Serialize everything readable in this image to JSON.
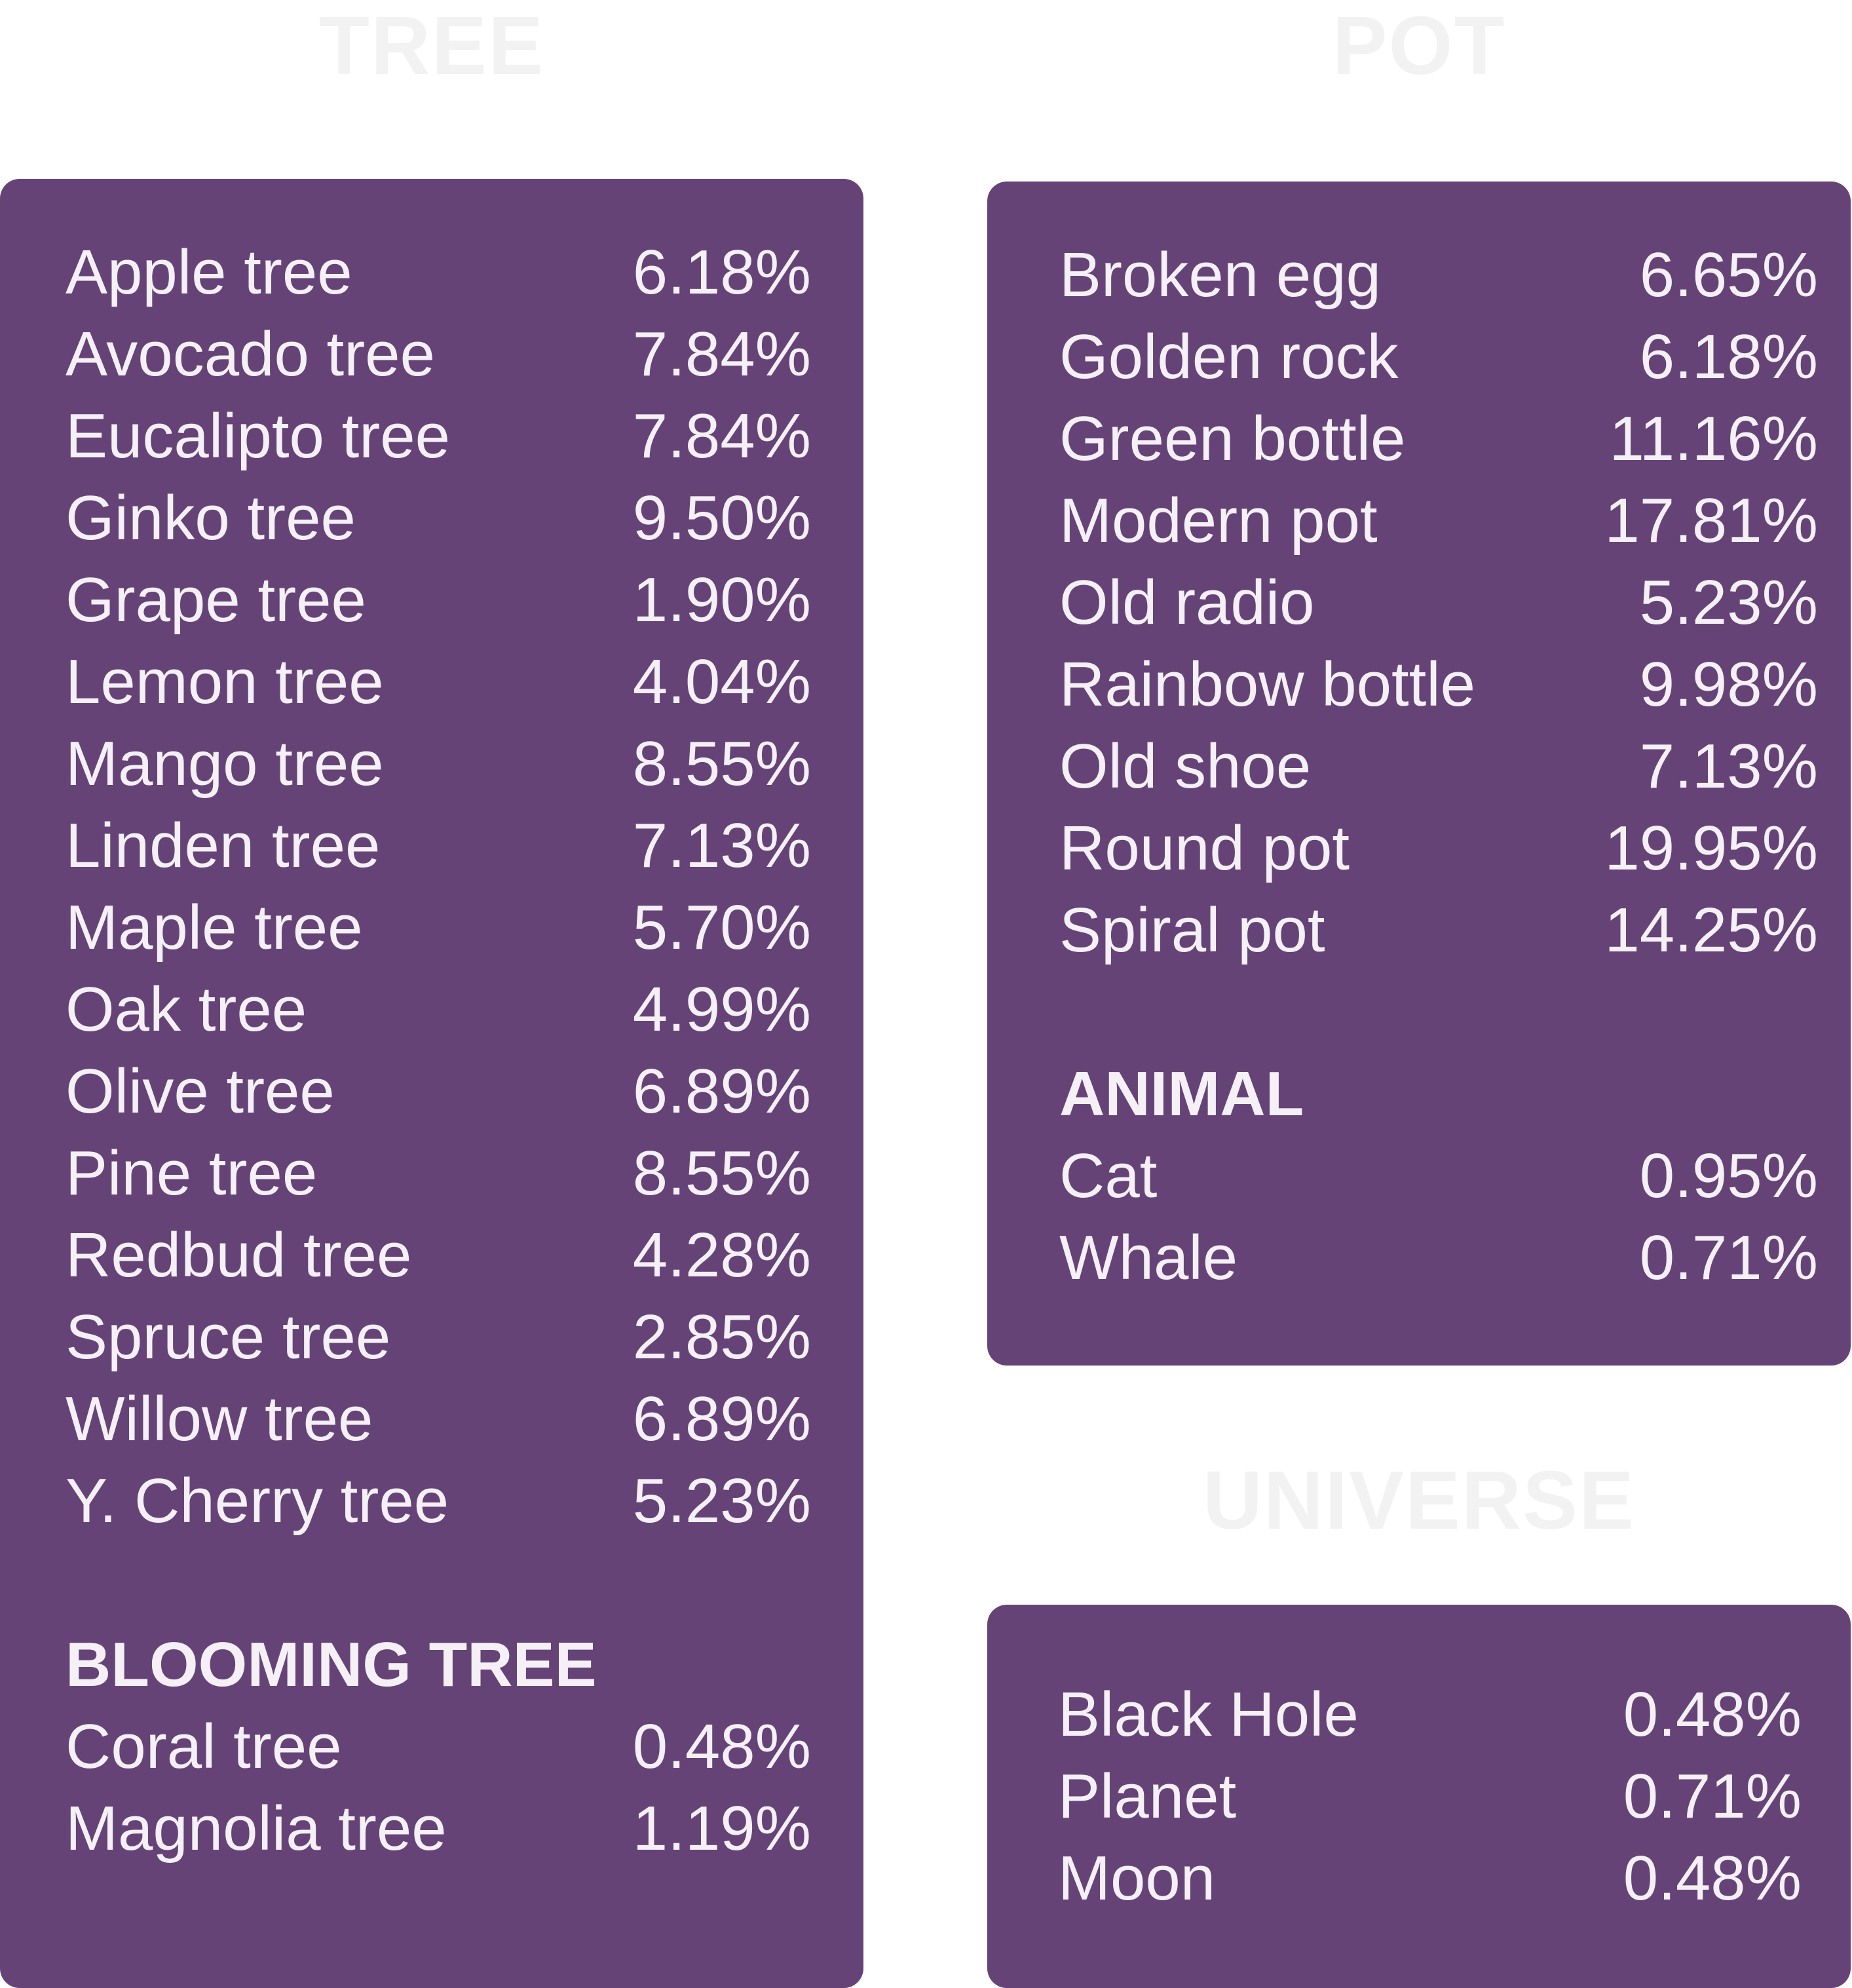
{
  "tree": {
    "heading": "TREE",
    "items": [
      {
        "name": "Apple tree",
        "value": "6.18%"
      },
      {
        "name": "Avocado tree",
        "value": "7.84%"
      },
      {
        "name": "Eucalipto tree",
        "value": "7.84%"
      },
      {
        "name": "Ginko tree",
        "value": "9.50%"
      },
      {
        "name": "Grape tree",
        "value": "1.90%"
      },
      {
        "name": "Lemon tree",
        "value": "4.04%"
      },
      {
        "name": "Mango tree",
        "value": "8.55%"
      },
      {
        "name": "Linden tree",
        "value": "7.13%"
      },
      {
        "name": "Maple tree",
        "value": "5.70%"
      },
      {
        "name": "Oak tree",
        "value": "4.99%"
      },
      {
        "name": "Olive tree",
        "value": "6.89%"
      },
      {
        "name": "Pine tree",
        "value": "8.55%"
      },
      {
        "name": "Redbud tree",
        "value": "4.28%"
      },
      {
        "name": "Spruce tree",
        "value": "2.85%"
      },
      {
        "name": "Willow tree",
        "value": "6.89%"
      },
      {
        "name": "Y. Cherry tree",
        "value": "5.23%"
      }
    ],
    "blooming": {
      "heading": "BLOOMING TREE",
      "items": [
        {
          "name": "Coral tree",
          "value": "0.48%"
        },
        {
          "name": "Magnolia tree",
          "value": "1.19%"
        }
      ]
    }
  },
  "pot": {
    "heading": "POT",
    "items": [
      {
        "name": "Broken egg",
        "value": "6.65%"
      },
      {
        "name": "Golden rock",
        "value": "6.18%"
      },
      {
        "name": "Green bottle",
        "value": "11.16%"
      },
      {
        "name": "Modern pot",
        "value": "17.81%"
      },
      {
        "name": "Old radio",
        "value": "5.23%"
      },
      {
        "name": "Rainbow bottle",
        "value": "9.98%"
      },
      {
        "name": "Old shoe",
        "value": "7.13%"
      },
      {
        "name": "Round pot",
        "value": "19.95%"
      },
      {
        "name": "Spiral pot",
        "value": "14.25%"
      }
    ],
    "animal": {
      "heading": "ANIMAL",
      "items": [
        {
          "name": "Cat",
          "value": "0.95%"
        },
        {
          "name": "Whale",
          "value": "0.71%"
        }
      ]
    }
  },
  "universe": {
    "heading": "UNIVERSE",
    "items": [
      {
        "name": "Black Hole",
        "value": "0.48%"
      },
      {
        "name": "Planet",
        "value": "0.71%"
      },
      {
        "name": "Moon",
        "value": "0.48%"
      }
    ]
  },
  "colors": {
    "panel": "#664377",
    "panel_text": "#f4f0f6",
    "heading": "#f2f2f2",
    "background": "#ffffff"
  }
}
